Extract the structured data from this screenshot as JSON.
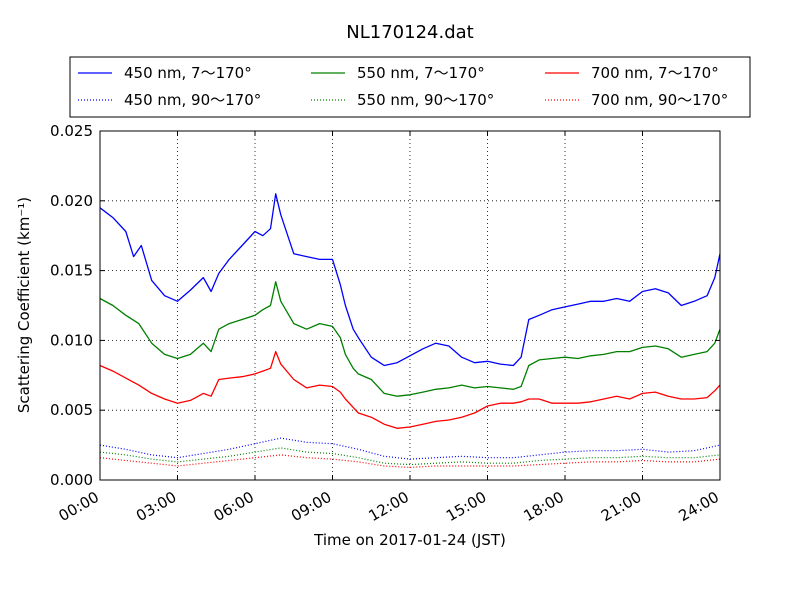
{
  "chart_data": {
    "type": "line",
    "title": "NL170124.dat",
    "xlabel": "Time on 2017-01-24 (JST)",
    "ylabel": "Scattering Coefficient (km⁻¹)",
    "xlim": [
      0,
      24
    ],
    "ylim": [
      0,
      0.025
    ],
    "x_ticks": [
      "00:00",
      "03:00",
      "06:00",
      "09:00",
      "12:00",
      "15:00",
      "18:00",
      "21:00",
      "24:00"
    ],
    "y_ticks": [
      "0.000",
      "0.005",
      "0.010",
      "0.015",
      "0.020",
      "0.025"
    ],
    "grid": true,
    "legend_position": "top",
    "series": [
      {
        "name": "450 nm, 7～170°",
        "color": "#0000ff",
        "style": "solid",
        "x": [
          0,
          0.5,
          1,
          1.3,
          1.6,
          2,
          2.5,
          3,
          3.5,
          4,
          4.3,
          4.6,
          5,
          5.5,
          6,
          6.3,
          6.6,
          6.8,
          7,
          7.5,
          8,
          8.5,
          9,
          9.3,
          9.5,
          9.8,
          10,
          10.5,
          11,
          11.5,
          12,
          12.5,
          13,
          13.5,
          14,
          14.5,
          15,
          15.5,
          16,
          16.3,
          16.6,
          17,
          17.5,
          18,
          18.5,
          19,
          19.5,
          20,
          20.5,
          21,
          21.5,
          22,
          22.5,
          23,
          23.5,
          23.8,
          24
        ],
        "y": [
          0.0195,
          0.0188,
          0.0178,
          0.016,
          0.0168,
          0.0143,
          0.0132,
          0.0128,
          0.0136,
          0.0145,
          0.0135,
          0.0148,
          0.0158,
          0.0168,
          0.0178,
          0.0175,
          0.018,
          0.0205,
          0.019,
          0.0162,
          0.016,
          0.0158,
          0.0158,
          0.014,
          0.0125,
          0.0108,
          0.0102,
          0.0088,
          0.0082,
          0.0084,
          0.0089,
          0.0094,
          0.0098,
          0.0096,
          0.0088,
          0.0084,
          0.0085,
          0.0083,
          0.0082,
          0.0088,
          0.0115,
          0.0118,
          0.0122,
          0.0124,
          0.0126,
          0.0128,
          0.0128,
          0.013,
          0.0128,
          0.0135,
          0.0137,
          0.0134,
          0.0125,
          0.0128,
          0.0132,
          0.0145,
          0.0162
        ]
      },
      {
        "name": "450 nm, 90～170°",
        "color": "#0000ff",
        "style": "dotted",
        "x": [
          0,
          1,
          2,
          3,
          4,
          5,
          6,
          7,
          8,
          9,
          10,
          11,
          12,
          13,
          14,
          15,
          16,
          17,
          18,
          19,
          20,
          21,
          22,
          23,
          24
        ],
        "y": [
          0.0025,
          0.0022,
          0.0018,
          0.0016,
          0.0019,
          0.0022,
          0.0026,
          0.003,
          0.0027,
          0.0026,
          0.0022,
          0.0017,
          0.0015,
          0.0016,
          0.0017,
          0.0016,
          0.0016,
          0.0018,
          0.002,
          0.0021,
          0.0021,
          0.0022,
          0.002,
          0.0021,
          0.0025
        ]
      },
      {
        "name": "550 nm, 7～170°",
        "color": "#008000",
        "style": "solid",
        "x": [
          0,
          0.5,
          1,
          1.5,
          2,
          2.5,
          3,
          3.5,
          4,
          4.3,
          4.6,
          5,
          5.5,
          6,
          6.3,
          6.6,
          6.8,
          7,
          7.5,
          8,
          8.5,
          9,
          9.3,
          9.5,
          9.8,
          10,
          10.5,
          11,
          11.5,
          12,
          12.5,
          13,
          13.5,
          14,
          14.5,
          15,
          15.5,
          16,
          16.3,
          16.6,
          17,
          17.5,
          18,
          18.5,
          19,
          19.5,
          20,
          20.5,
          21,
          21.5,
          22,
          22.5,
          23,
          23.5,
          23.8,
          24
        ],
        "y": [
          0.013,
          0.0125,
          0.0118,
          0.0112,
          0.0098,
          0.009,
          0.0087,
          0.009,
          0.0098,
          0.0092,
          0.0108,
          0.0112,
          0.0115,
          0.0118,
          0.0122,
          0.0125,
          0.0142,
          0.0128,
          0.0112,
          0.0108,
          0.0112,
          0.011,
          0.0102,
          0.009,
          0.008,
          0.0076,
          0.0072,
          0.0062,
          0.006,
          0.0061,
          0.0063,
          0.0065,
          0.0066,
          0.0068,
          0.0066,
          0.0067,
          0.0066,
          0.0065,
          0.0067,
          0.0082,
          0.0086,
          0.0087,
          0.0088,
          0.0087,
          0.0089,
          0.009,
          0.0092,
          0.0092,
          0.0095,
          0.0096,
          0.0094,
          0.0088,
          0.009,
          0.0092,
          0.0098,
          0.0108
        ]
      },
      {
        "name": "550 nm, 90～170°",
        "color": "#008000",
        "style": "dotted",
        "x": [
          0,
          1,
          2,
          3,
          4,
          5,
          6,
          7,
          8,
          9,
          10,
          11,
          12,
          13,
          14,
          15,
          16,
          17,
          18,
          19,
          20,
          21,
          22,
          23,
          24
        ],
        "y": [
          0.002,
          0.0018,
          0.0015,
          0.0013,
          0.0015,
          0.0017,
          0.002,
          0.0023,
          0.002,
          0.0019,
          0.0016,
          0.0012,
          0.0011,
          0.0012,
          0.0013,
          0.0012,
          0.0012,
          0.0014,
          0.0015,
          0.0016,
          0.0016,
          0.0017,
          0.0016,
          0.0016,
          0.0018
        ]
      },
      {
        "name": "700 nm, 7～170°",
        "color": "#ff0000",
        "style": "solid",
        "x": [
          0,
          0.5,
          1,
          1.5,
          2,
          2.5,
          3,
          3.5,
          4,
          4.3,
          4.6,
          5,
          5.5,
          6,
          6.3,
          6.6,
          6.8,
          7,
          7.5,
          8,
          8.5,
          9,
          9.3,
          9.5,
          9.8,
          10,
          10.5,
          11,
          11.5,
          12,
          12.5,
          13,
          13.5,
          14,
          14.5,
          15,
          15.5,
          16,
          16.3,
          16.6,
          17,
          17.5,
          18,
          18.5,
          19,
          19.5,
          20,
          20.5,
          21,
          21.5,
          22,
          22.5,
          23,
          23.5,
          23.8,
          24
        ],
        "y": [
          0.0082,
          0.0078,
          0.0073,
          0.0068,
          0.0062,
          0.0058,
          0.0055,
          0.0057,
          0.0062,
          0.006,
          0.0072,
          0.0073,
          0.0074,
          0.0076,
          0.0078,
          0.008,
          0.0092,
          0.0083,
          0.0072,
          0.0066,
          0.0068,
          0.0067,
          0.0063,
          0.0058,
          0.0052,
          0.0048,
          0.0045,
          0.004,
          0.0037,
          0.0038,
          0.004,
          0.0042,
          0.0043,
          0.0045,
          0.0048,
          0.0053,
          0.0055,
          0.0055,
          0.0056,
          0.0058,
          0.0058,
          0.0055,
          0.0055,
          0.0055,
          0.0056,
          0.0058,
          0.006,
          0.0058,
          0.0062,
          0.0063,
          0.006,
          0.0058,
          0.0058,
          0.0059,
          0.0064,
          0.0068
        ]
      },
      {
        "name": "700 nm, 90～170°",
        "color": "#ff0000",
        "style": "dotted",
        "x": [
          0,
          1,
          2,
          3,
          4,
          5,
          6,
          7,
          8,
          9,
          10,
          11,
          12,
          13,
          14,
          15,
          16,
          17,
          18,
          19,
          20,
          21,
          22,
          23,
          24
        ],
        "y": [
          0.0016,
          0.0014,
          0.0012,
          0.001,
          0.0012,
          0.0014,
          0.0016,
          0.0018,
          0.0016,
          0.0015,
          0.0013,
          0.001,
          0.0009,
          0.001,
          0.001,
          0.001,
          0.001,
          0.0011,
          0.0012,
          0.0013,
          0.0013,
          0.0014,
          0.0013,
          0.0013,
          0.0015
        ]
      }
    ]
  }
}
